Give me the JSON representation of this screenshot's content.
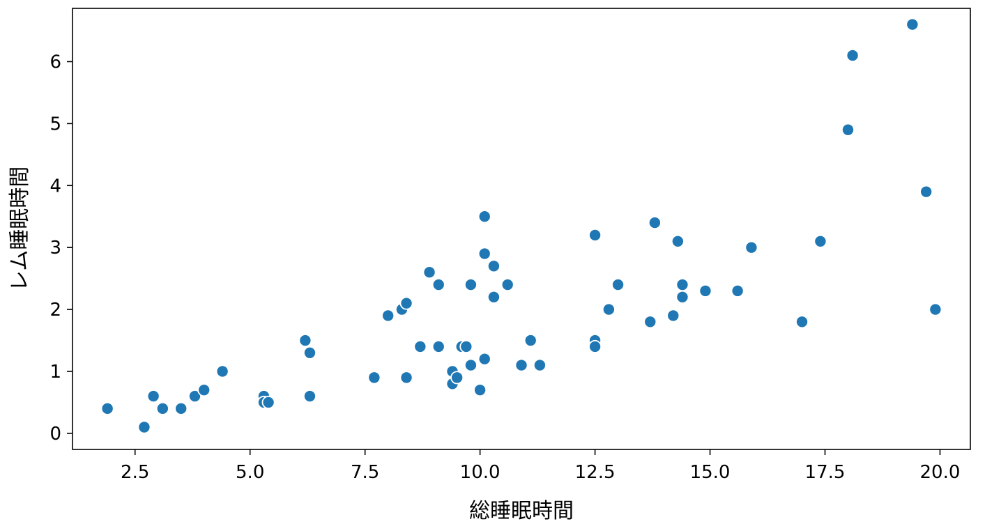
{
  "chart_data": {
    "type": "scatter",
    "title": "",
    "xlabel": "総睡眠時間",
    "ylabel": "レム睡眠時間",
    "xlim": [
      1.14,
      20.66
    ],
    "ylim": [
      -0.26,
      6.86
    ],
    "xticks": [
      2.5,
      5.0,
      7.5,
      10.0,
      12.5,
      15.0,
      17.5,
      20.0
    ],
    "xtick_labels": [
      "2.5",
      "5.0",
      "7.5",
      "10.0",
      "12.5",
      "15.0",
      "17.5",
      "20.0"
    ],
    "yticks": [
      0,
      1,
      2,
      3,
      4,
      5,
      6
    ],
    "ytick_labels": [
      "0",
      "1",
      "2",
      "3",
      "4",
      "5",
      "6"
    ],
    "grid": false,
    "color": "#1f77b4",
    "points": [
      {
        "x": 1.9,
        "y": 0.4
      },
      {
        "x": 2.7,
        "y": 0.1
      },
      {
        "x": 2.9,
        "y": 0.6
      },
      {
        "x": 3.1,
        "y": 0.4
      },
      {
        "x": 3.5,
        "y": 0.4
      },
      {
        "x": 3.8,
        "y": 0.6
      },
      {
        "x": 4.0,
        "y": 0.7
      },
      {
        "x": 4.4,
        "y": 1.0
      },
      {
        "x": 5.3,
        "y": 0.6
      },
      {
        "x": 5.3,
        "y": 0.5
      },
      {
        "x": 5.4,
        "y": 0.5
      },
      {
        "x": 6.2,
        "y": 1.5
      },
      {
        "x": 6.3,
        "y": 1.3
      },
      {
        "x": 6.3,
        "y": 0.6
      },
      {
        "x": 7.7,
        "y": 0.9
      },
      {
        "x": 8.0,
        "y": 1.9
      },
      {
        "x": 8.3,
        "y": 2.0
      },
      {
        "x": 8.4,
        "y": 2.1
      },
      {
        "x": 8.4,
        "y": 0.9
      },
      {
        "x": 8.7,
        "y": 1.4
      },
      {
        "x": 8.9,
        "y": 2.6
      },
      {
        "x": 9.1,
        "y": 2.4
      },
      {
        "x": 9.1,
        "y": 1.4
      },
      {
        "x": 9.4,
        "y": 1.0
      },
      {
        "x": 9.4,
        "y": 0.8
      },
      {
        "x": 9.5,
        "y": 0.9
      },
      {
        "x": 9.6,
        "y": 1.4
      },
      {
        "x": 9.7,
        "y": 1.4
      },
      {
        "x": 9.8,
        "y": 2.4
      },
      {
        "x": 9.8,
        "y": 1.1
      },
      {
        "x": 10.0,
        "y": 0.7
      },
      {
        "x": 10.1,
        "y": 3.5
      },
      {
        "x": 10.1,
        "y": 2.9
      },
      {
        "x": 10.1,
        "y": 1.2
      },
      {
        "x": 10.3,
        "y": 2.7
      },
      {
        "x": 10.3,
        "y": 2.2
      },
      {
        "x": 10.6,
        "y": 2.4
      },
      {
        "x": 10.9,
        "y": 1.1
      },
      {
        "x": 11.1,
        "y": 1.5
      },
      {
        "x": 11.3,
        "y": 1.1
      },
      {
        "x": 12.5,
        "y": 3.2
      },
      {
        "x": 12.5,
        "y": 1.5
      },
      {
        "x": 12.5,
        "y": 1.4
      },
      {
        "x": 12.8,
        "y": 2.0
      },
      {
        "x": 13.0,
        "y": 2.4
      },
      {
        "x": 13.7,
        "y": 1.8
      },
      {
        "x": 13.8,
        "y": 3.4
      },
      {
        "x": 14.2,
        "y": 1.9
      },
      {
        "x": 14.3,
        "y": 3.1
      },
      {
        "x": 14.4,
        "y": 2.4
      },
      {
        "x": 14.4,
        "y": 2.2
      },
      {
        "x": 14.9,
        "y": 2.3
      },
      {
        "x": 15.6,
        "y": 2.3
      },
      {
        "x": 15.9,
        "y": 3.0
      },
      {
        "x": 17.0,
        "y": 1.8
      },
      {
        "x": 17.4,
        "y": 3.1
      },
      {
        "x": 18.0,
        "y": 4.9
      },
      {
        "x": 18.1,
        "y": 6.1
      },
      {
        "x": 19.4,
        "y": 6.6
      },
      {
        "x": 19.7,
        "y": 3.9
      },
      {
        "x": 19.9,
        "y": 2.0
      }
    ]
  }
}
